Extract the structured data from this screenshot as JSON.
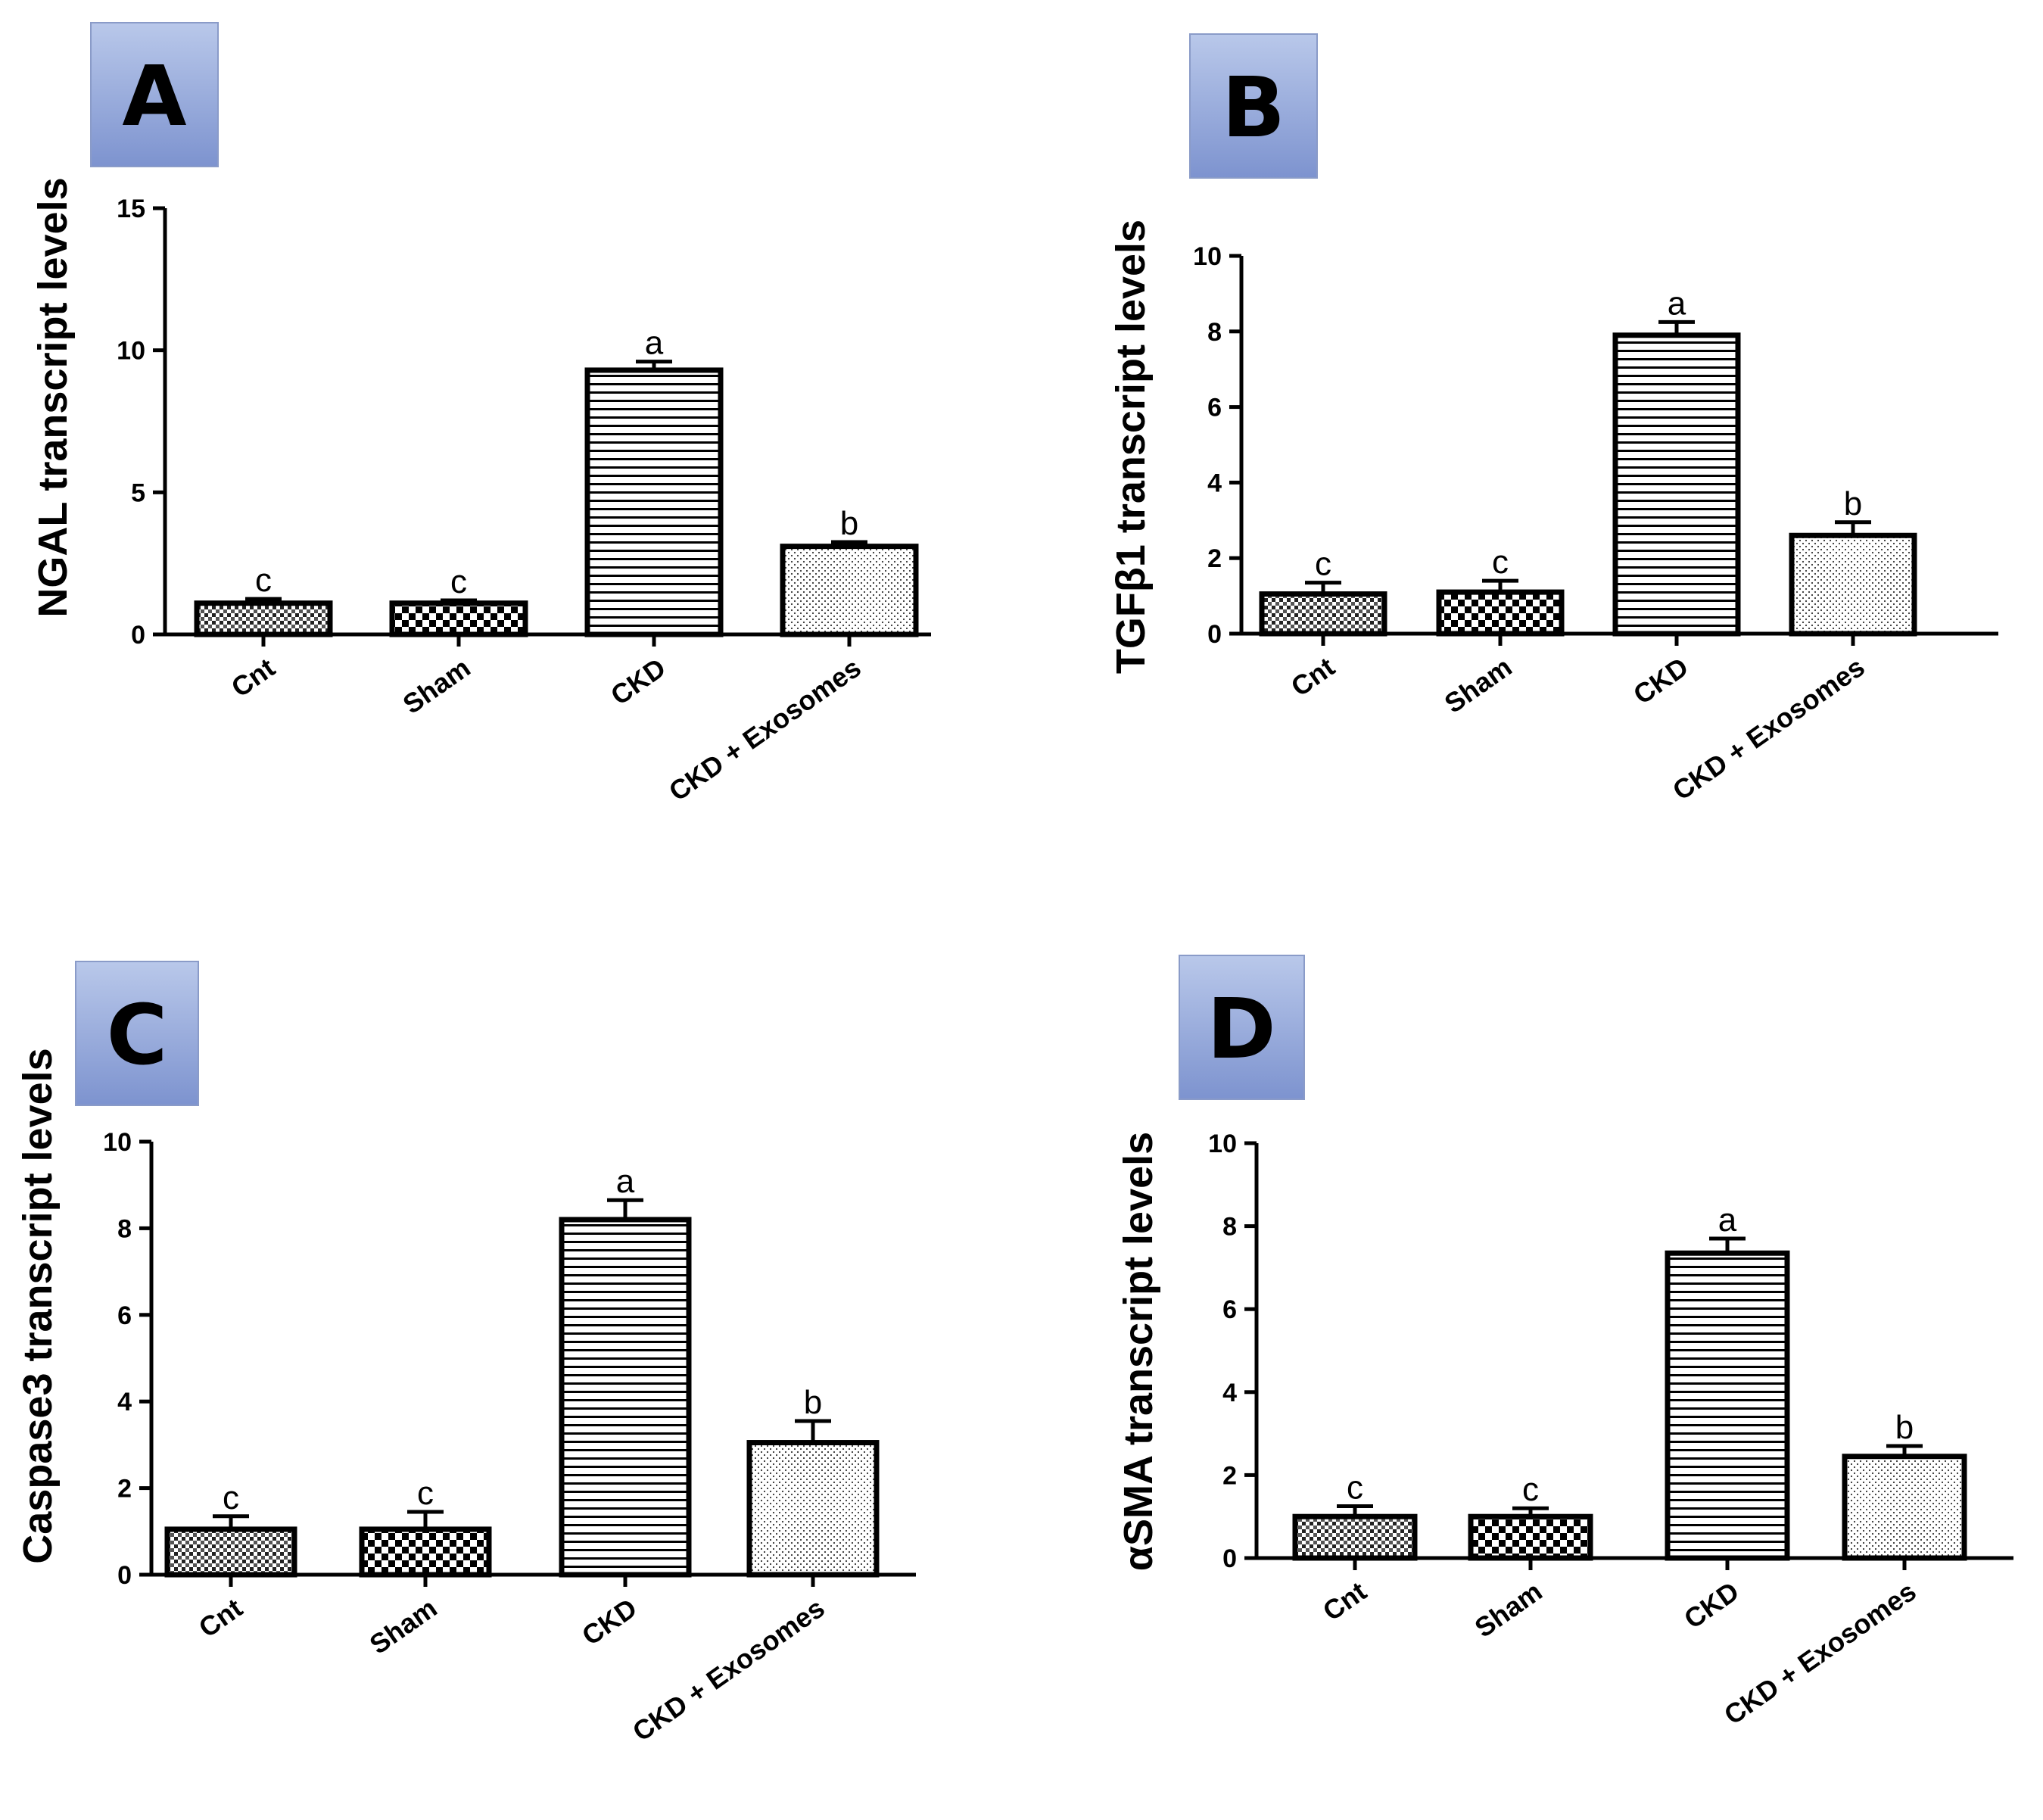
{
  "chart_data": [
    {
      "panel": "A",
      "type": "bar",
      "categories": [
        "Cnt",
        "Sham",
        "CKD",
        "CKD + Exosomes"
      ],
      "values": [
        1.1,
        1.1,
        9.3,
        3.1
      ],
      "errors": [
        0.15,
        0.1,
        0.3,
        0.15
      ],
      "significance": [
        "c",
        "c",
        "a",
        "b"
      ],
      "ylabel": "NGAL transcript levels",
      "ylim": [
        0,
        15
      ],
      "yticks": [
        0,
        5,
        10,
        15
      ]
    },
    {
      "panel": "B",
      "type": "bar",
      "categories": [
        "Cnt",
        "Sham",
        "CKD",
        "CKD + Exosomes"
      ],
      "values": [
        1.05,
        1.1,
        7.9,
        2.6
      ],
      "errors": [
        0.3,
        0.3,
        0.35,
        0.35
      ],
      "significance": [
        "c",
        "c",
        "a",
        "b"
      ],
      "ylabel": "TGFβ1 transcript levels",
      "ylim": [
        0,
        10
      ],
      "yticks": [
        0,
        2,
        4,
        6,
        8,
        10
      ]
    },
    {
      "panel": "C",
      "type": "bar",
      "categories": [
        "Cnt",
        "Sham",
        "CKD",
        "CKD + Exosomes"
      ],
      "values": [
        1.05,
        1.05,
        8.2,
        3.05
      ],
      "errors": [
        0.3,
        0.4,
        0.45,
        0.5
      ],
      "significance": [
        "c",
        "c",
        "a",
        "b"
      ],
      "ylabel": "Caspase3 transcript levels",
      "ylim": [
        0,
        10
      ],
      "yticks": [
        0,
        2,
        4,
        6,
        8,
        10
      ]
    },
    {
      "panel": "D",
      "type": "bar",
      "categories": [
        "Cnt",
        "Sham",
        "CKD",
        "CKD + Exosomes"
      ],
      "values": [
        1.0,
        1.0,
        7.35,
        2.45
      ],
      "errors": [
        0.25,
        0.2,
        0.35,
        0.25
      ],
      "significance": [
        "c",
        "c",
        "a",
        "b"
      ],
      "ylabel": "αSMA transcript levels",
      "ylim": [
        0,
        10
      ],
      "yticks": [
        0,
        2,
        4,
        6,
        8,
        10
      ]
    }
  ],
  "colors": {
    "panel_label_bg_top": "#b9c8ea",
    "panel_label_bg_bottom": "#7d93cf",
    "bar_stroke": "#000000",
    "background": "#ffffff"
  }
}
